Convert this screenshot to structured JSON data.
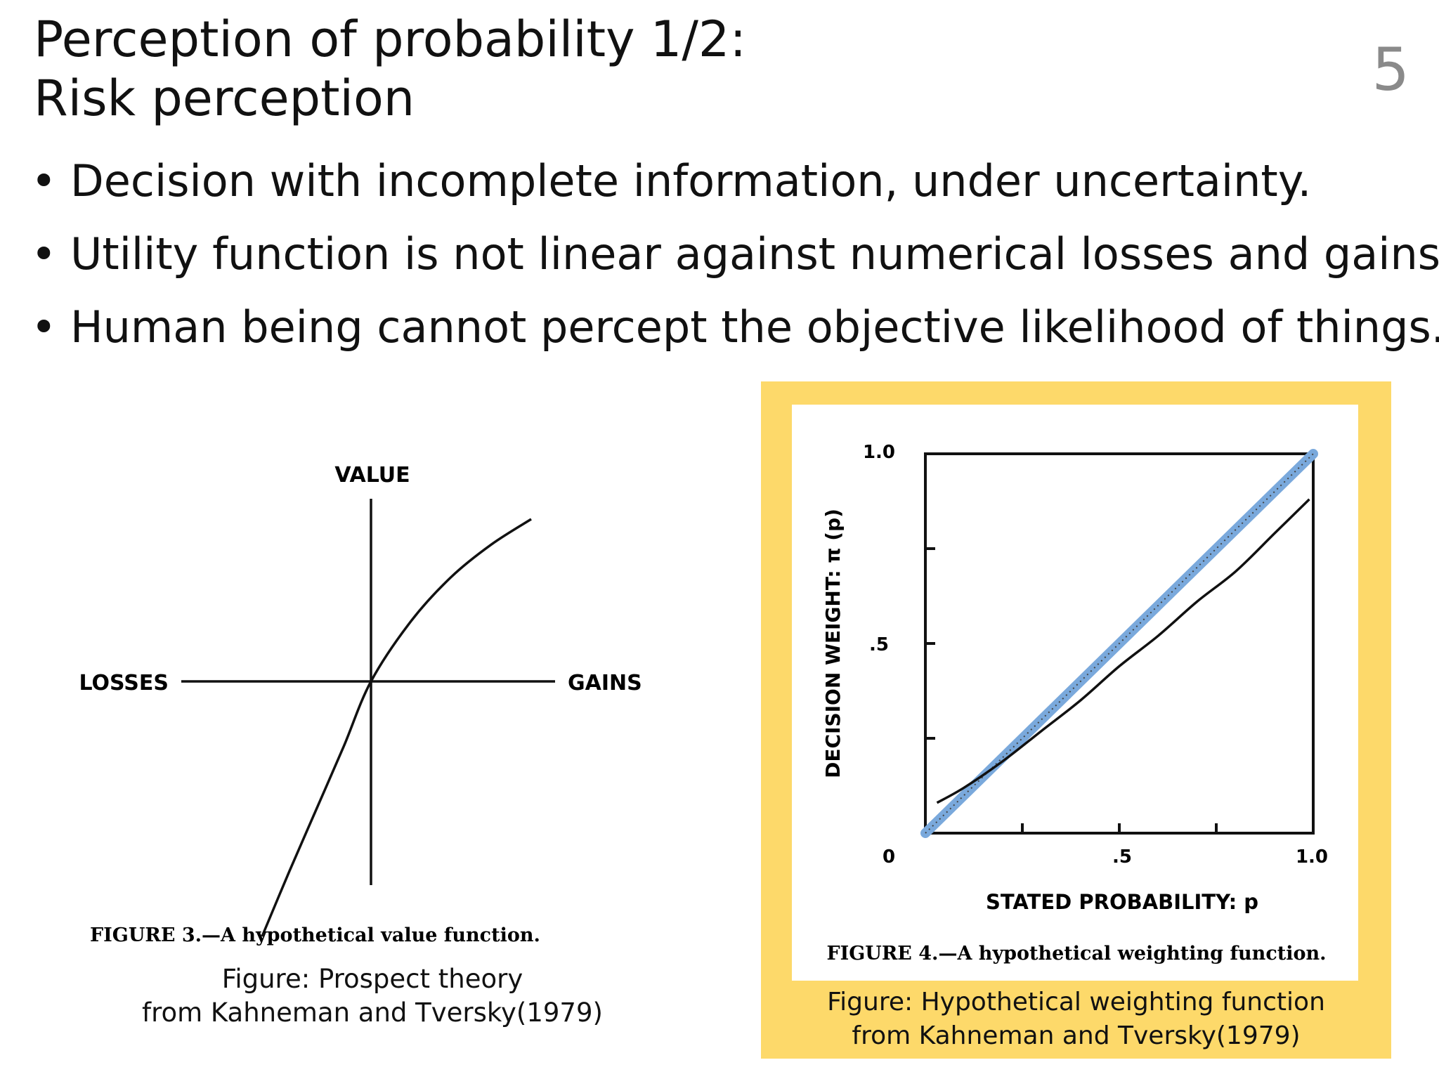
{
  "slide": {
    "title_line1": "Perception of probability 1/2:",
    "title_line2": "Risk perception",
    "page_number": "5",
    "bullets": [
      "Decision with incomplete information, under uncertainty.",
      "Utility function is not linear against numerical losses and gains.",
      "Human being cannot percept the objective likelihood of things."
    ]
  },
  "figure3": {
    "labels": {
      "value": "VALUE",
      "losses": "LOSSES",
      "gains": "GAINS"
    },
    "caption_inner": "FIGURE 3.—A hypothetical value function.",
    "caption_line1": "Figure: Prospect theory",
    "caption_line2": "from Kahneman and Tversky(1979)"
  },
  "figure4": {
    "ylabel": "DECISION  WEIGHT:  π (p)",
    "xlabel": "STATED  PROBABILITY: p",
    "y_ticks": [
      "0",
      ".5",
      "1.0"
    ],
    "x_ticks": [
      ".5",
      "1.0"
    ],
    "caption_inner": "FIGURE 4.—A hypothetical weighting function.",
    "caption_line1": "Figure: Hypothetical weighting function",
    "caption_line2": "from Kahneman and Tversky(1979)",
    "frame_color": "#fdd96a",
    "highlight_color": "#7aa9dc"
  },
  "chart_data": [
    {
      "type": "line",
      "title": "",
      "xlabel": "GAINS",
      "ylabel": "VALUE",
      "x_left_label": "LOSSES",
      "series": [
        {
          "name": "",
          "x": [
            -1.0,
            -0.75,
            -0.5,
            -0.25,
            0,
            0.25,
            0.5,
            0.75,
            1.0
          ],
          "y": [
            -1.1,
            -0.82,
            -0.55,
            -0.28,
            0,
            0.26,
            0.45,
            0.59,
            0.7
          ]
        }
      ]
    },
    {
      "type": "line",
      "title": "",
      "xlabel": "STATED  PROBABILITY: p",
      "ylabel": "DECISION  WEIGHT:  π (p)",
      "xlim": [
        0,
        1.0
      ],
      "ylim": [
        0,
        1.0
      ],
      "x_ticks": [
        0.25,
        0.5,
        0.75
      ],
      "y_ticks": [
        0.25,
        0.5,
        0.75
      ],
      "series": [
        {
          "name": "",
          "x": [
            0.03,
            0.1,
            0.2,
            0.3,
            0.4,
            0.5,
            0.6,
            0.7,
            0.8,
            0.9,
            0.99
          ],
          "y": [
            0.08,
            0.12,
            0.19,
            0.27,
            0.35,
            0.44,
            0.52,
            0.61,
            0.69,
            0.79,
            0.88
          ]
        },
        {
          "name": "",
          "x": [
            0,
            1.0
          ],
          "y": [
            0,
            1.0
          ]
        }
      ]
    }
  ]
}
